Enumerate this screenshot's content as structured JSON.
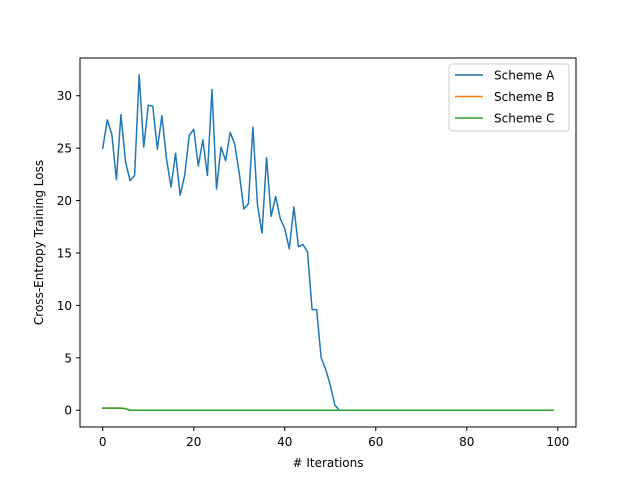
{
  "chart_data": {
    "type": "line",
    "title": "",
    "xlabel": "# Iterations",
    "ylabel": "Cross-Entropy Training Loss",
    "xlim": [
      -5,
      104
    ],
    "ylim": [
      -1.6,
      33.6
    ],
    "xticks": [
      0,
      20,
      40,
      60,
      80,
      100
    ],
    "yticks": [
      0,
      5,
      10,
      15,
      20,
      25,
      30
    ],
    "xtick_labels": [
      "0",
      "20",
      "40",
      "60",
      "80",
      "100"
    ],
    "ytick_labels": [
      "0",
      "5",
      "10",
      "15",
      "20",
      "25",
      "30"
    ],
    "grid": false,
    "legend_position": "top-right",
    "x": [
      0,
      1,
      2,
      3,
      4,
      5,
      6,
      7,
      8,
      9,
      10,
      11,
      12,
      13,
      14,
      15,
      16,
      17,
      18,
      19,
      20,
      21,
      22,
      23,
      24,
      25,
      26,
      27,
      28,
      29,
      30,
      31,
      32,
      33,
      34,
      35,
      36,
      37,
      38,
      39,
      40,
      41,
      42,
      43,
      44,
      45,
      46,
      47,
      48,
      49,
      50,
      51,
      52,
      53,
      54,
      55,
      56,
      57,
      58,
      59,
      60,
      61,
      62,
      63,
      64,
      65,
      66,
      67,
      68,
      69,
      70,
      71,
      72,
      73,
      74,
      75,
      76,
      77,
      78,
      79,
      80,
      81,
      82,
      83,
      84,
      85,
      86,
      87,
      88,
      89,
      90,
      91,
      92,
      93,
      94,
      95,
      96,
      97,
      98,
      99
    ],
    "series": [
      {
        "name": "Scheme A",
        "color": "#1f77b4",
        "values": [
          25.0,
          27.7,
          26.3,
          22.0,
          28.2,
          23.7,
          21.9,
          22.4,
          32.0,
          25.1,
          29.1,
          29.0,
          24.9,
          28.1,
          24.0,
          21.3,
          24.5,
          20.5,
          22.4,
          26.2,
          26.8,
          23.3,
          25.8,
          22.4,
          30.6,
          21.1,
          25.1,
          23.8,
          26.5,
          25.4,
          22.6,
          19.2,
          19.7,
          27.0,
          19.6,
          16.9,
          24.1,
          18.5,
          20.4,
          18.3,
          17.3,
          15.4,
          19.4,
          15.6,
          15.8,
          15.1,
          9.6,
          9.6,
          5.0,
          3.9,
          2.4,
          0.5,
          0.0,
          0.0,
          0.0,
          0.0,
          0.0,
          0.0,
          0.0,
          0.0,
          0.0,
          0.0,
          0.0,
          0.0,
          0.0,
          0.0,
          0.0,
          0.0,
          0.0,
          0.0,
          0.0,
          0.0,
          0.0,
          0.0,
          0.0,
          0.0,
          0.0,
          0.0,
          0.0,
          0.0,
          0.0,
          0.0,
          0.0,
          0.0,
          0.0,
          0.0,
          0.0,
          0.0,
          0.0,
          0.0,
          0.0,
          0.0,
          0.0,
          0.0,
          0.0,
          0.0,
          0.0,
          0.0,
          0.0,
          0.0
        ]
      },
      {
        "name": "Scheme B",
        "color": "#ff7f0e",
        "values": [
          0.2,
          0.2,
          0.2,
          0.2,
          0.2,
          0.15,
          0.0,
          0.0,
          0.0,
          0.0,
          0.0,
          0.0,
          0.0,
          0.0,
          0.0,
          0.0,
          0.0,
          0.0,
          0.0,
          0.0,
          0.0,
          0.0,
          0.0,
          0.0,
          0.0,
          0.0,
          0.0,
          0.0,
          0.0,
          0.0,
          0.0,
          0.0,
          0.0,
          0.0,
          0.0,
          0.0,
          0.0,
          0.0,
          0.0,
          0.0,
          0.0,
          0.0,
          0.0,
          0.0,
          0.0,
          0.0,
          0.0,
          0.0,
          0.0,
          0.0,
          0.0,
          0.0,
          0.0,
          0.0,
          0.0,
          0.0,
          0.0,
          0.0,
          0.0,
          0.0,
          0.0,
          0.0,
          0.0,
          0.0,
          0.0,
          0.0,
          0.0,
          0.0,
          0.0,
          0.0,
          0.0,
          0.0,
          0.0,
          0.0,
          0.0,
          0.0,
          0.0,
          0.0,
          0.0,
          0.0,
          0.0,
          0.0,
          0.0,
          0.0,
          0.0,
          0.0,
          0.0,
          0.0,
          0.0,
          0.0,
          0.0,
          0.0,
          0.0,
          0.0,
          0.0,
          0.0,
          0.0,
          0.0,
          0.0,
          0.0
        ]
      },
      {
        "name": "Scheme C",
        "color": "#2ca02c",
        "values": [
          0.2,
          0.2,
          0.2,
          0.2,
          0.2,
          0.15,
          0.0,
          0.0,
          0.0,
          0.0,
          0.0,
          0.0,
          0.0,
          0.0,
          0.0,
          0.0,
          0.0,
          0.0,
          0.0,
          0.0,
          0.0,
          0.0,
          0.0,
          0.0,
          0.0,
          0.0,
          0.0,
          0.0,
          0.0,
          0.0,
          0.0,
          0.0,
          0.0,
          0.0,
          0.0,
          0.0,
          0.0,
          0.0,
          0.0,
          0.0,
          0.0,
          0.0,
          0.0,
          0.0,
          0.0,
          0.0,
          0.0,
          0.0,
          0.0,
          0.0,
          0.0,
          0.0,
          0.0,
          0.0,
          0.0,
          0.0,
          0.0,
          0.0,
          0.0,
          0.0,
          0.0,
          0.0,
          0.0,
          0.0,
          0.0,
          0.0,
          0.0,
          0.0,
          0.0,
          0.0,
          0.0,
          0.0,
          0.0,
          0.0,
          0.0,
          0.0,
          0.0,
          0.0,
          0.0,
          0.0,
          0.0,
          0.0,
          0.0,
          0.0,
          0.0,
          0.0,
          0.0,
          0.0,
          0.0,
          0.0,
          0.0,
          0.0,
          0.0,
          0.0,
          0.0,
          0.0,
          0.0,
          0.0,
          0.0,
          0.0
        ]
      }
    ]
  }
}
